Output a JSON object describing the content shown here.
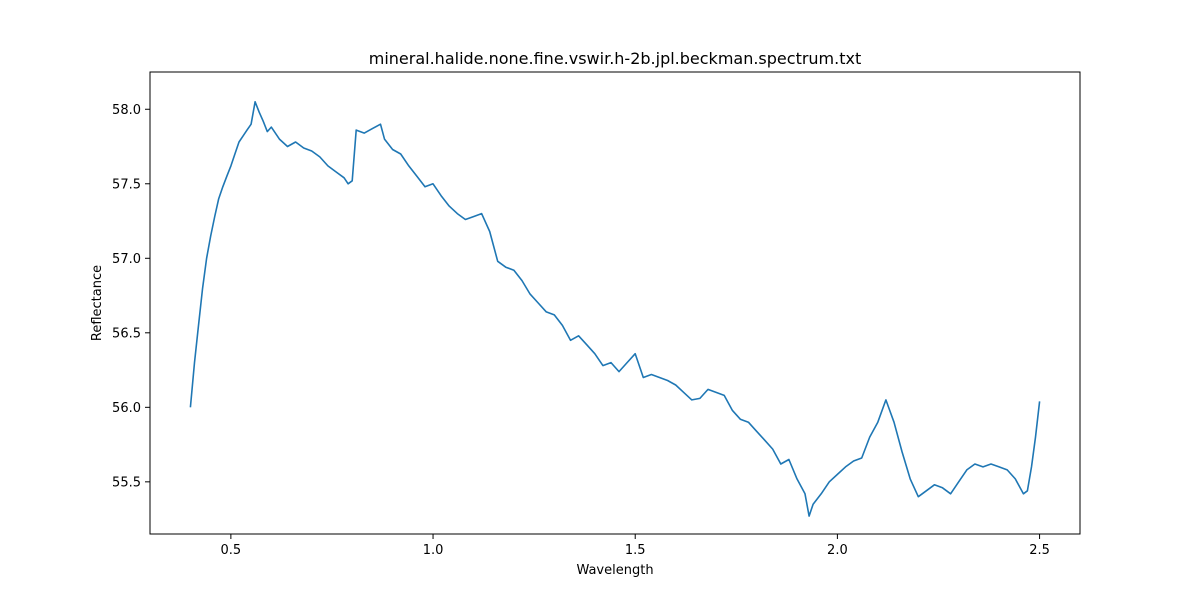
{
  "chart_data": {
    "type": "line",
    "title": "mineral.halide.none.fine.vswir.h-2b.jpl.beckman.spectrum.txt",
    "xlabel": "Wavelength",
    "ylabel": "Reflectance",
    "xlim": [
      0.3,
      2.6
    ],
    "ylim": [
      55.15,
      58.25
    ],
    "xticks": [
      0.5,
      1.0,
      1.5,
      2.0,
      2.5
    ],
    "xtick_labels": [
      "0.5",
      "1.0",
      "1.5",
      "2.0",
      "2.5"
    ],
    "yticks": [
      55.5,
      56.0,
      56.5,
      57.0,
      57.5,
      58.0
    ],
    "ytick_labels": [
      "55.5",
      "56.0",
      "56.5",
      "57.0",
      "57.5",
      "58.0"
    ],
    "grid": false,
    "series": [
      {
        "color": "#1f77b4",
        "x": [
          0.4,
          0.41,
          0.42,
          0.43,
          0.44,
          0.45,
          0.46,
          0.47,
          0.48,
          0.49,
          0.5,
          0.51,
          0.52,
          0.53,
          0.54,
          0.55,
          0.56,
          0.57,
          0.58,
          0.59,
          0.6,
          0.62,
          0.64,
          0.66,
          0.68,
          0.7,
          0.72,
          0.74,
          0.76,
          0.78,
          0.79,
          0.8,
          0.81,
          0.83,
          0.85,
          0.87,
          0.88,
          0.9,
          0.92,
          0.94,
          0.96,
          0.98,
          1.0,
          1.02,
          1.04,
          1.06,
          1.08,
          1.1,
          1.12,
          1.14,
          1.16,
          1.18,
          1.2,
          1.22,
          1.24,
          1.26,
          1.28,
          1.3,
          1.32,
          1.34,
          1.36,
          1.38,
          1.4,
          1.42,
          1.44,
          1.46,
          1.48,
          1.5,
          1.52,
          1.54,
          1.56,
          1.58,
          1.6,
          1.62,
          1.64,
          1.66,
          1.68,
          1.7,
          1.72,
          1.74,
          1.76,
          1.78,
          1.8,
          1.82,
          1.84,
          1.86,
          1.88,
          1.9,
          1.92,
          1.93,
          1.94,
          1.96,
          1.98,
          2.0,
          2.02,
          2.04,
          2.06,
          2.08,
          2.1,
          2.12,
          2.14,
          2.16,
          2.18,
          2.2,
          2.22,
          2.24,
          2.26,
          2.28,
          2.3,
          2.32,
          2.34,
          2.36,
          2.38,
          2.4,
          2.42,
          2.44,
          2.46,
          2.47,
          2.48,
          2.49,
          2.5
        ],
        "y": [
          56.0,
          56.3,
          56.55,
          56.8,
          57.0,
          57.15,
          57.28,
          57.4,
          57.48,
          57.55,
          57.62,
          57.7,
          57.78,
          57.82,
          57.86,
          57.9,
          58.05,
          57.98,
          57.92,
          57.85,
          57.88,
          57.8,
          57.75,
          57.78,
          57.74,
          57.72,
          57.68,
          57.62,
          57.58,
          57.54,
          57.5,
          57.52,
          57.86,
          57.84,
          57.87,
          57.9,
          57.8,
          57.73,
          57.7,
          57.62,
          57.55,
          57.48,
          57.5,
          57.42,
          57.35,
          57.3,
          57.26,
          57.28,
          57.3,
          57.18,
          56.98,
          56.94,
          56.92,
          56.85,
          56.76,
          56.7,
          56.64,
          56.62,
          56.55,
          56.45,
          56.48,
          56.42,
          56.36,
          56.28,
          56.3,
          56.24,
          56.3,
          56.36,
          56.2,
          56.22,
          56.2,
          56.18,
          56.15,
          56.1,
          56.05,
          56.06,
          56.12,
          56.1,
          56.08,
          55.98,
          55.92,
          55.9,
          55.84,
          55.78,
          55.72,
          55.62,
          55.65,
          55.52,
          55.42,
          55.27,
          55.35,
          55.42,
          55.5,
          55.55,
          55.6,
          55.64,
          55.66,
          55.8,
          55.9,
          56.05,
          55.9,
          55.7,
          55.52,
          55.4,
          55.44,
          55.48,
          55.46,
          55.42,
          55.5,
          55.58,
          55.62,
          55.6,
          55.62,
          55.6,
          55.58,
          55.52,
          55.42,
          55.44,
          55.6,
          55.8,
          56.04
        ]
      }
    ]
  }
}
